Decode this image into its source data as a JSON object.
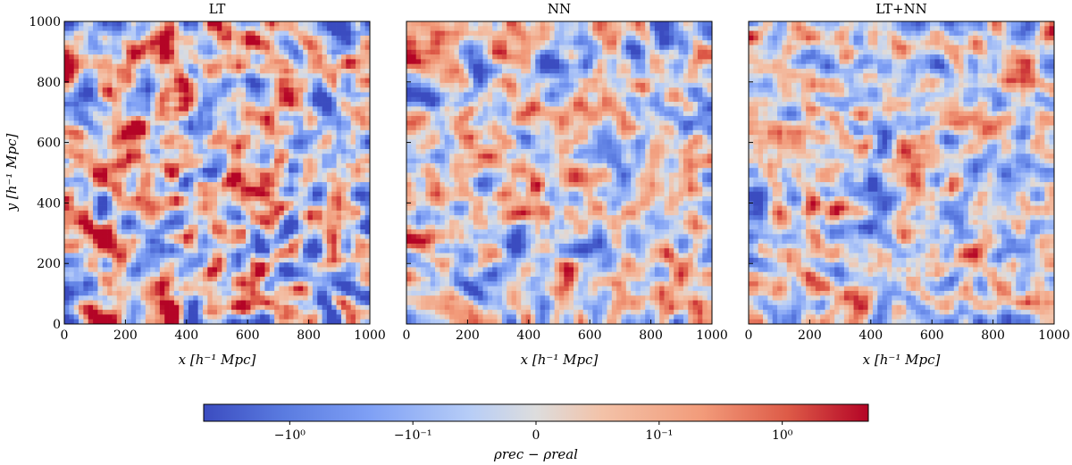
{
  "chart_data": {
    "type": "heatmap",
    "panels": [
      {
        "title": "LT",
        "seed": 11,
        "intensity": 1.25
      },
      {
        "title": "NN",
        "seed": 29,
        "intensity": 1.0
      },
      {
        "title": "LT+NN",
        "seed": 53,
        "intensity": 0.85
      }
    ],
    "x_axis": {
      "label": "x [h⁻¹ Mpc]",
      "range": [
        0,
        1000
      ],
      "ticks": [
        {
          "value": 0,
          "label": "0"
        },
        {
          "value": 200,
          "label": "200"
        },
        {
          "value": 400,
          "label": "400"
        },
        {
          "value": 600,
          "label": "600"
        },
        {
          "value": 800,
          "label": "800"
        },
        {
          "value": 1000,
          "label": "1000"
        }
      ]
    },
    "y_axis": {
      "label": "y [h⁻¹ Mpc]",
      "range": [
        0,
        1000
      ],
      "ticks": [
        {
          "value": 0,
          "label": "0"
        },
        {
          "value": 200,
          "label": "200"
        },
        {
          "value": 400,
          "label": "400"
        },
        {
          "value": 600,
          "label": "600"
        },
        {
          "value": 800,
          "label": "800"
        },
        {
          "value": 1000,
          "label": "1000"
        }
      ]
    },
    "colorbar": {
      "label": "ρrec − ρreal",
      "scale": "symlog",
      "linthresh": 0.1,
      "range": [
        -5,
        5
      ],
      "colormap": "coolwarm",
      "color_low": "#3b4cc0",
      "color_mid": "#dddddd",
      "color_high": "#b40426",
      "ticks": [
        {
          "value": -1,
          "label": "−10⁰"
        },
        {
          "value": -0.1,
          "label": "−10⁻¹"
        },
        {
          "value": 0,
          "label": "0"
        },
        {
          "value": 0.1,
          "label": "10⁻¹"
        },
        {
          "value": 1,
          "label": "10⁰"
        }
      ]
    }
  }
}
